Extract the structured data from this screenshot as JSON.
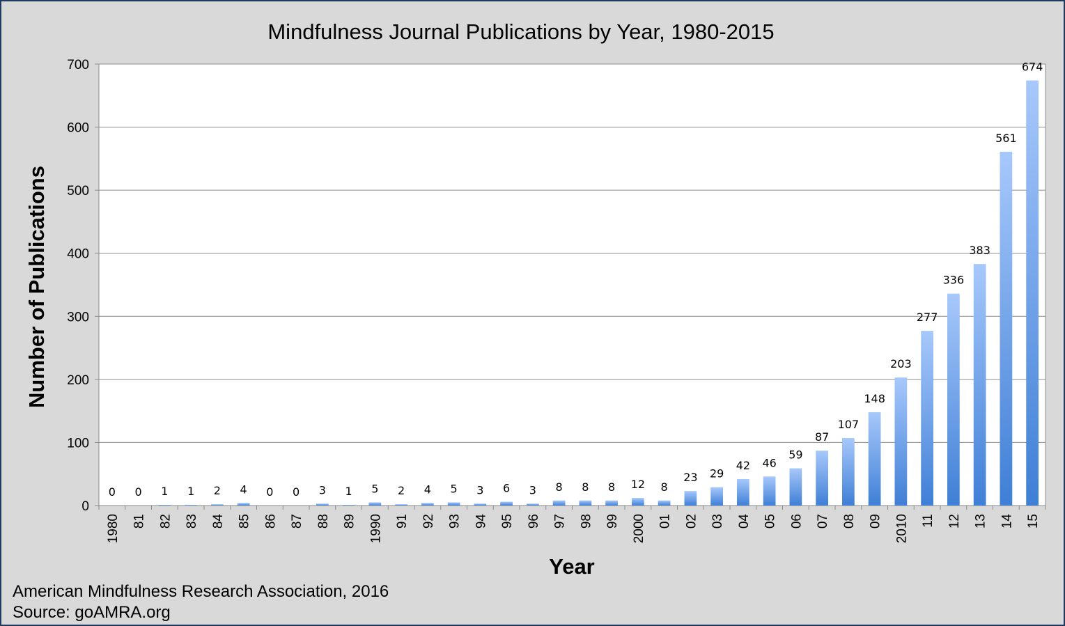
{
  "chart_data": {
    "type": "bar",
    "title": "Mindfulness Journal Publications by Year, 1980-2015",
    "xlabel": "Year",
    "ylabel": "Number of Publications",
    "ylim": [
      0,
      700
    ],
    "yticks": [
      0,
      100,
      200,
      300,
      400,
      500,
      600,
      700
    ],
    "grid": true,
    "legend": "none",
    "categories": [
      "1980",
      "81",
      "82",
      "83",
      "84",
      "85",
      "86",
      "87",
      "88",
      "89",
      "1990",
      "91",
      "92",
      "93",
      "94",
      "95",
      "96",
      "97",
      "98",
      "99",
      "2000",
      "01",
      "02",
      "03",
      "04",
      "05",
      "06",
      "07",
      "08",
      "09",
      "2010",
      "11",
      "12",
      "13",
      "14",
      "15"
    ],
    "values": [
      0,
      0,
      1,
      1,
      2,
      4,
      0,
      0,
      3,
      1,
      5,
      2,
      4,
      5,
      3,
      6,
      3,
      8,
      8,
      8,
      12,
      8,
      23,
      29,
      42,
      46,
      59,
      87,
      107,
      148,
      203,
      277,
      336,
      383,
      561,
      674
    ],
    "colors": {
      "bar_top": "#a7c8fb",
      "bar_bottom": "#3f7fd6",
      "grid": "#8c8c8c",
      "plot_bg": "#ffffff"
    }
  },
  "footer": {
    "line1": "American Mindfulness Research Association, 2016",
    "line2": "Source: goAMRA.org"
  }
}
